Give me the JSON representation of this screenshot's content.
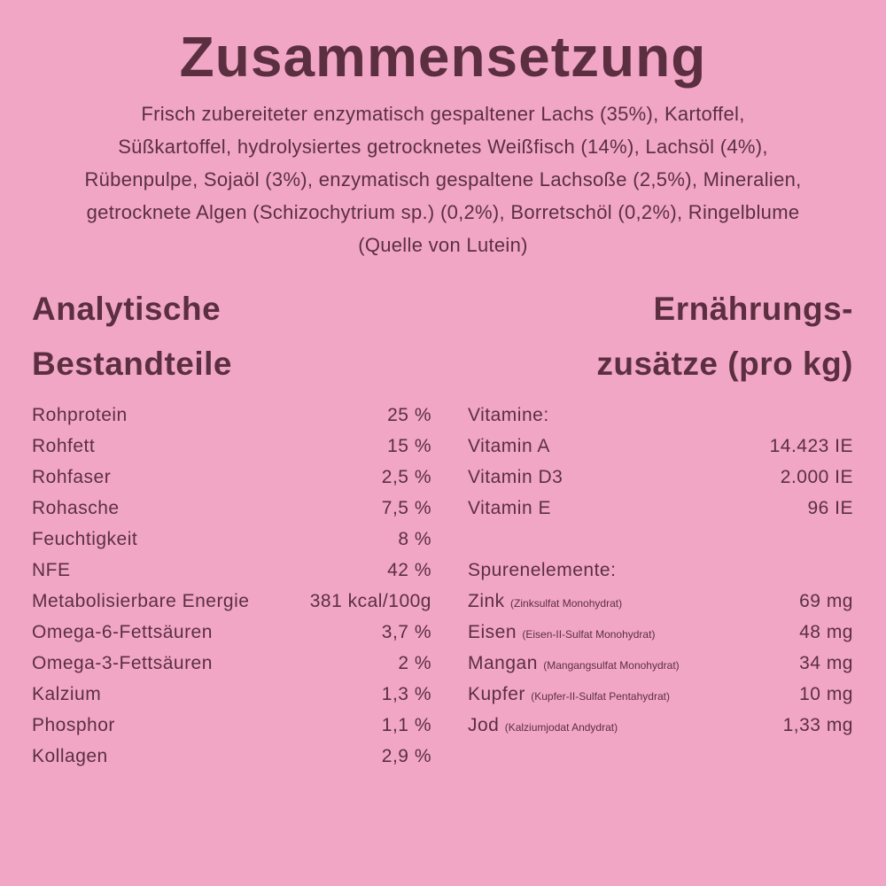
{
  "title": "Zusammensetzung",
  "composition_lines": [
    "Frisch zubereiteter enzymatisch gespaltener Lachs (35%), Kartoffel,",
    "Süßkartoffel, hydrolysiertes getrocknetes Weißfisch (14%), Lachsöl (4%),",
    "Rübenpulpe, Sojaöl (3%), enzymatisch gespaltene Lachsoße (2,5%), Mineralien,",
    "getrocknete Algen (Schizochytrium sp.) (0,2%), Borretschöl (0,2%), Ringelblume",
    "(Quelle von Lutein)"
  ],
  "analytical": {
    "heading_lines": [
      "Analytische",
      "Bestandteile"
    ],
    "rows": [
      [
        "Rohprotein",
        "25 %"
      ],
      [
        "Rohfett",
        "15 %"
      ],
      [
        "Rohfaser",
        "2,5 %"
      ],
      [
        "Rohasche",
        "7,5 %"
      ],
      [
        "Feuchtigkeit",
        "8 %"
      ],
      [
        "NFE",
        "42 %"
      ],
      [
        "Metabolisierbare Energie",
        "381 kcal/100g"
      ],
      [
        "Omega-6-Fettsäuren",
        "3,7 %"
      ],
      [
        "Omega-3-Fettsäuren",
        "2 %"
      ],
      [
        "Kalzium",
        "1,3 %"
      ],
      [
        "Phosphor",
        "1,1 %"
      ],
      [
        "Kollagen",
        "2,9 %"
      ]
    ]
  },
  "additives": {
    "heading_lines": [
      "Ernährungs-",
      "zusätze (pro kg)"
    ],
    "vitamins": {
      "heading": "Vitamine:",
      "rows": [
        [
          "Vitamin A",
          "14.423 IE"
        ],
        [
          "Vitamin D3",
          "2.000 IE"
        ],
        [
          "Vitamin E",
          "96 IE"
        ]
      ]
    },
    "trace_elements": {
      "heading": "Spurenelemente:",
      "rows": [
        {
          "name": "Zink",
          "note": "(Zinksulfat Monohydrat)",
          "amount": "69 mg"
        },
        {
          "name": "Eisen",
          "note": "(Eisen-II-Sulfat Monohydrat)",
          "amount": "48 mg"
        },
        {
          "name": "Mangan",
          "note": "(Mangangsulfat Monohydrat)",
          "amount": "34 mg"
        },
        {
          "name": "Kupfer",
          "note": "(Kupfer-II-Sulfat Pentahydrat)",
          "amount": "10 mg"
        },
        {
          "name": "Jod",
          "note": "(Kalziumjodat Andydrat)",
          "amount": "1,33 mg"
        }
      ]
    }
  }
}
